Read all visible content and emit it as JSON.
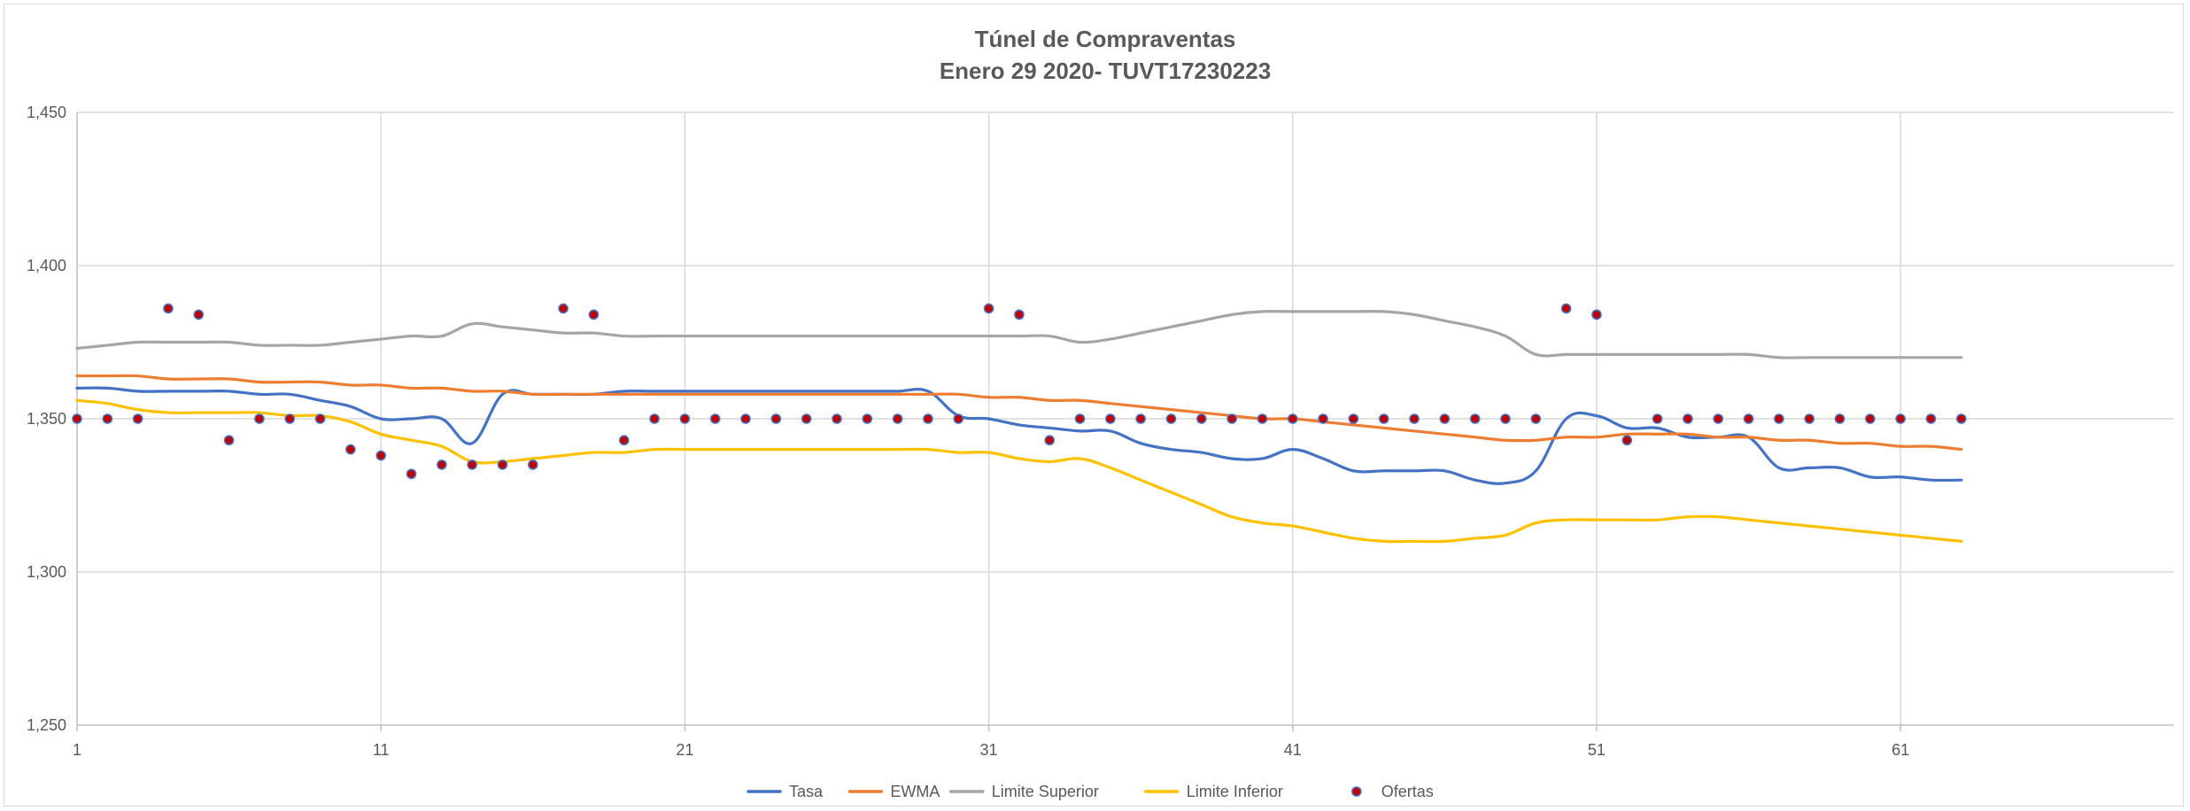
{
  "chart_data": {
    "type": "line",
    "title": [
      "Túnel de Compraventas",
      "Enero 29 2020- TUVT17230223"
    ],
    "xlabel": "",
    "ylabel": "",
    "xlim": [
      1,
      70
    ],
    "ylim": [
      1250,
      1450
    ],
    "x_ticks": [
      1,
      11,
      21,
      31,
      41,
      51,
      61
    ],
    "x_tick_labels": [
      "1",
      "11",
      "21",
      "31",
      "41",
      "51",
      "61"
    ],
    "y_ticks": [
      1250,
      1300,
      1350,
      1400,
      1450
    ],
    "y_tick_labels": [
      "1,250",
      "1,300",
      "1,350",
      "1,400",
      "1,450"
    ],
    "grid": true,
    "legend_position": "bottom",
    "x": [
      1,
      2,
      3,
      4,
      5,
      6,
      7,
      8,
      9,
      10,
      11,
      12,
      13,
      14,
      15,
      16,
      17,
      18,
      19,
      20,
      21,
      22,
      23,
      24,
      25,
      26,
      27,
      28,
      29,
      30,
      31,
      32,
      33,
      34,
      35,
      36,
      37,
      38,
      39,
      40,
      41,
      42,
      43,
      44,
      45,
      46,
      47,
      48,
      49,
      50,
      51,
      52,
      53,
      54,
      55,
      56,
      57,
      58,
      59,
      60,
      61,
      62,
      63
    ],
    "series": [
      {
        "name": "Tasa",
        "kind": "line",
        "color": "#4472c4",
        "values": [
          1360,
          1360,
          1359,
          1359,
          1359,
          1359,
          1358,
          1358,
          1356,
          1354,
          1350,
          1350,
          1350,
          1342,
          1358,
          1358,
          1358,
          1358,
          1359,
          1359,
          1359,
          1359,
          1359,
          1359,
          1359,
          1359,
          1359,
          1359,
          1359,
          1351,
          1350,
          1348,
          1347,
          1346,
          1346,
          1342,
          1340,
          1339,
          1337,
          1337,
          1340,
          1337,
          1333,
          1333,
          1333,
          1333,
          1330,
          1329,
          1333,
          1350,
          1351,
          1347,
          1347,
          1344,
          1344,
          1344,
          1334,
          1334,
          1334,
          1331,
          1331,
          1330,
          1330
        ]
      },
      {
        "name": "EWMA",
        "kind": "line",
        "color": "#ed7d31",
        "values": [
          1364,
          1364,
          1364,
          1363,
          1363,
          1363,
          1362,
          1362,
          1362,
          1361,
          1361,
          1360,
          1360,
          1359,
          1359,
          1358,
          1358,
          1358,
          1358,
          1358,
          1358,
          1358,
          1358,
          1358,
          1358,
          1358,
          1358,
          1358,
          1358,
          1358,
          1357,
          1357,
          1356,
          1356,
          1355,
          1354,
          1353,
          1352,
          1351,
          1350,
          1350,
          1349,
          1348,
          1347,
          1346,
          1345,
          1344,
          1343,
          1343,
          1344,
          1344,
          1345,
          1345,
          1345,
          1344,
          1344,
          1343,
          1343,
          1342,
          1342,
          1341,
          1341,
          1340
        ]
      },
      {
        "name": "Limite Superior",
        "kind": "line",
        "color": "#a5a5a5",
        "values": [
          1373,
          1374,
          1375,
          1375,
          1375,
          1375,
          1374,
          1374,
          1374,
          1375,
          1376,
          1377,
          1377,
          1381,
          1380,
          1379,
          1378,
          1378,
          1377,
          1377,
          1377,
          1377,
          1377,
          1377,
          1377,
          1377,
          1377,
          1377,
          1377,
          1377,
          1377,
          1377,
          1377,
          1375,
          1376,
          1378,
          1380,
          1382,
          1384,
          1385,
          1385,
          1385,
          1385,
          1385,
          1384,
          1382,
          1380,
          1377,
          1371,
          1371,
          1371,
          1371,
          1371,
          1371,
          1371,
          1371,
          1370,
          1370,
          1370,
          1370,
          1370,
          1370,
          1370
        ]
      },
      {
        "name": "Limite Inferior",
        "kind": "line",
        "color": "#ffc000",
        "values": [
          1356,
          1355,
          1353,
          1352,
          1352,
          1352,
          1352,
          1351,
          1351,
          1349,
          1345,
          1343,
          1341,
          1336,
          1336,
          1337,
          1338,
          1339,
          1339,
          1340,
          1340,
          1340,
          1340,
          1340,
          1340,
          1340,
          1340,
          1340,
          1340,
          1339,
          1339,
          1337,
          1336,
          1337,
          1334,
          1330,
          1326,
          1322,
          1318,
          1316,
          1315,
          1313,
          1311,
          1310,
          1310,
          1310,
          1311,
          1312,
          1316,
          1317,
          1317,
          1317,
          1317,
          1318,
          1318,
          1317,
          1316,
          1315,
          1314,
          1313,
          1312,
          1311,
          1310
        ]
      },
      {
        "name": "Ofertas",
        "kind": "scatter",
        "color": "#c00000",
        "edge_color": "#4472c4",
        "values": [
          1350,
          1350,
          1350,
          1386,
          1384,
          1343,
          1350,
          1350,
          1350,
          1340,
          1338,
          1332,
          1335,
          1335,
          1335,
          1335,
          1386,
          1384,
          1343,
          1350,
          1350,
          1350,
          1350,
          1350,
          1350,
          1350,
          1350,
          1350,
          1350,
          1350,
          1386,
          1384,
          1343,
          1350,
          1350,
          1350,
          1350,
          1350,
          1350,
          1350,
          1350,
          1350,
          1350,
          1350,
          1350,
          1350,
          1350,
          1350,
          1350,
          1386,
          1384,
          1343,
          1350,
          1350,
          1350,
          1350,
          1350,
          1350,
          1350,
          1350,
          1350,
          1350,
          1350
        ]
      }
    ]
  }
}
